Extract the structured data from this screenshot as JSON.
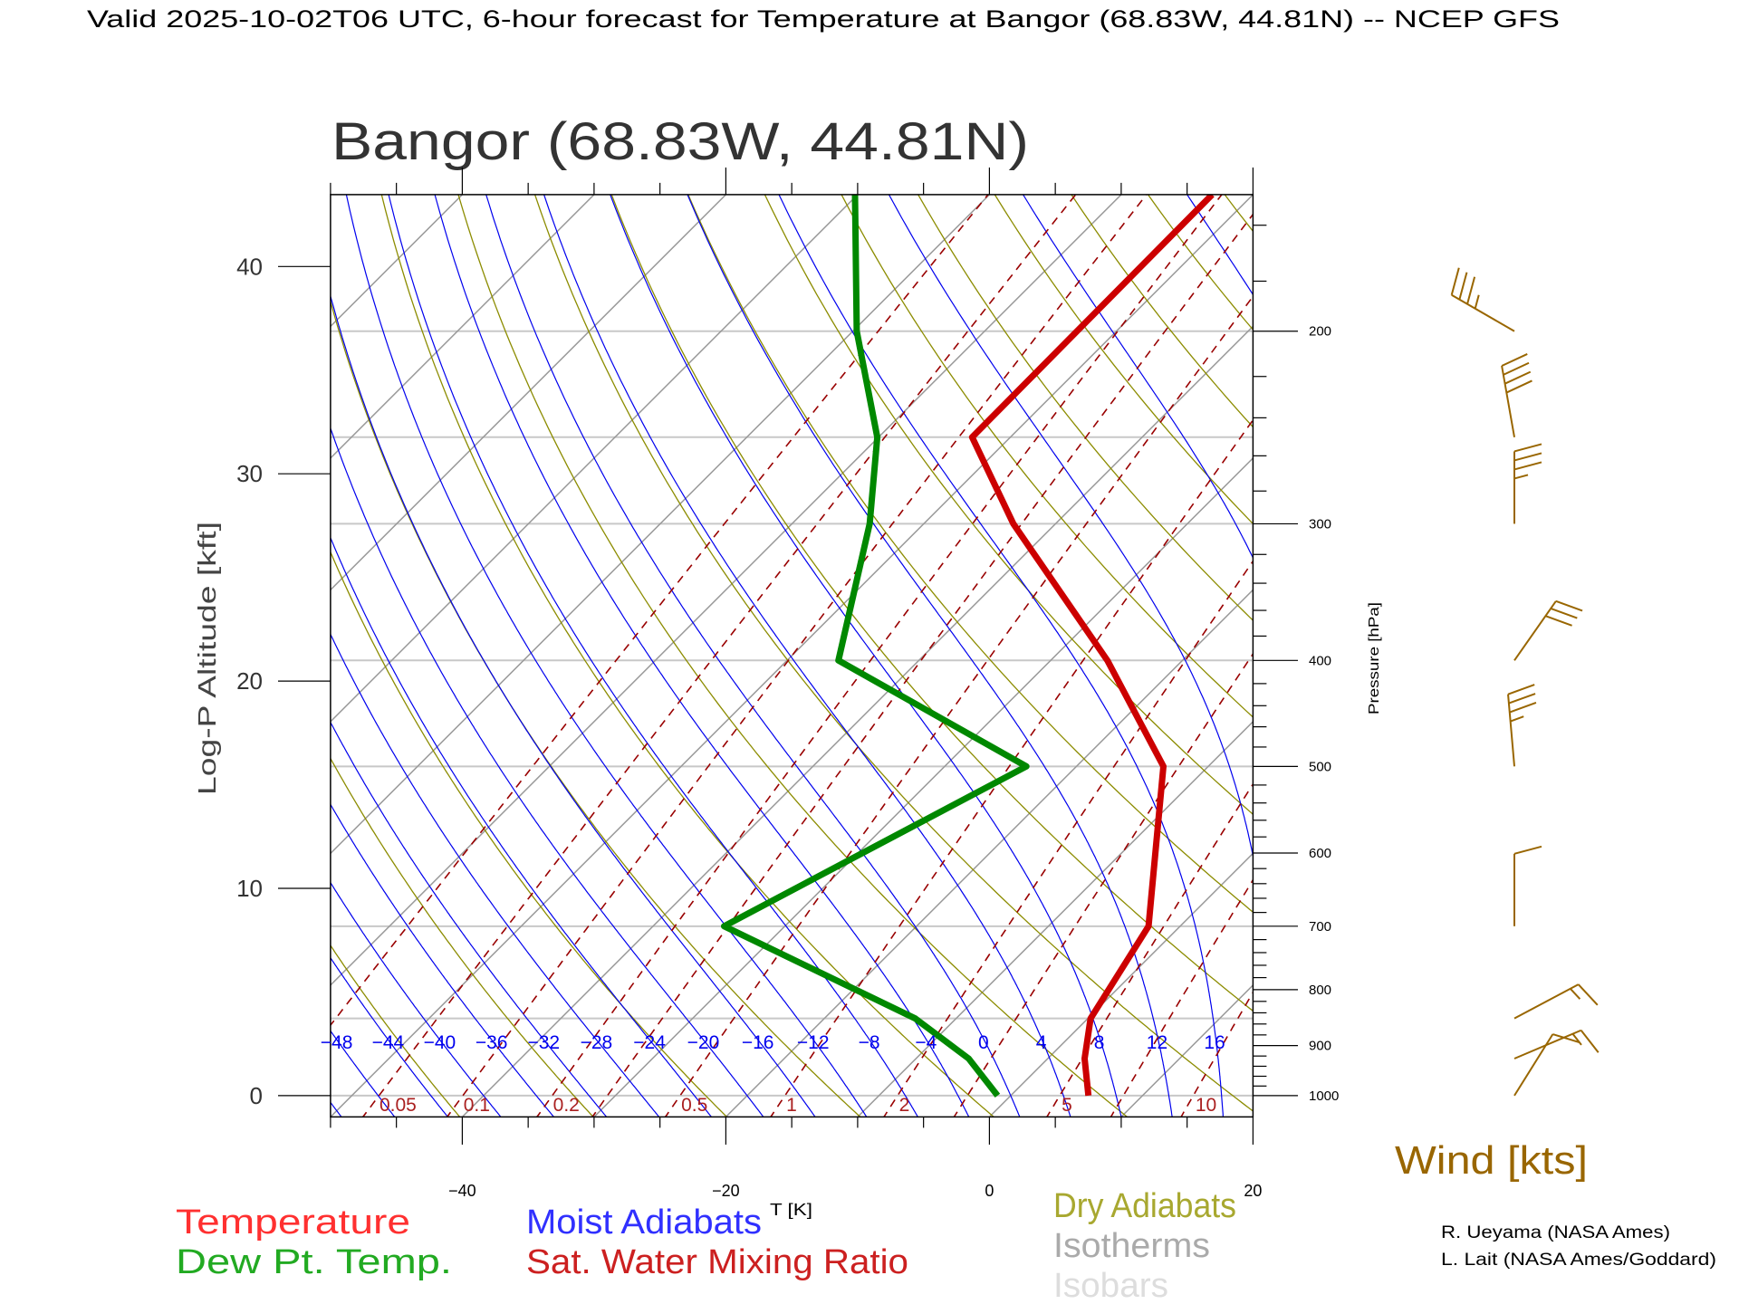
{
  "header": {
    "title": "Valid 2025-10-02T06 UTC, 6-hour forecast for Temperature at Bangor (68.83W, 44.81N) -- NCEP GFS"
  },
  "chart_data": {
    "type": "skewt",
    "title": "Bangor (68.83W, 44.81N)",
    "xlabel": "T [K]",
    "ylabel": "Log-P Altitude [kft]",
    "y2label": "Pressure [hPa]",
    "xlim": [
      -50,
      20
    ],
    "plim": [
      1045,
      150
    ],
    "x_ticks": [
      -40,
      -20,
      0,
      20
    ],
    "x_tick_labels": [
      "−40",
      "−20",
      "0",
      "20"
    ],
    "alt_ticks": [
      0,
      10,
      20,
      30,
      40
    ],
    "alt_tick_labels": [
      "0",
      "10",
      "20",
      "30",
      "40"
    ],
    "pressure_ticks": [
      1000,
      900,
      800,
      700,
      600,
      500,
      400,
      300,
      200
    ],
    "pressure_tick_labels": [
      "1000",
      "900",
      "800",
      "700",
      "600",
      "500",
      "400",
      "300",
      "200"
    ],
    "isobars": [
      1000,
      850,
      700,
      500,
      400,
      300,
      250,
      200
    ],
    "isotherm_step_C": 10,
    "dry_adiabat_step_K": 10,
    "moist_adiabat_labels": [
      -48,
      -44,
      -40,
      -36,
      -32,
      -28,
      -24,
      -20,
      -16,
      -12,
      -8,
      -4,
      0,
      4,
      8,
      12,
      16
    ],
    "mixing_ratio_lines": [
      0.02,
      0.05,
      0.1,
      0.2,
      0.3,
      0.5,
      1,
      2,
      3,
      5,
      7,
      10,
      15,
      20
    ],
    "mixing_ratio_labels": [
      "0.05",
      "0.1",
      "0.2",
      "0.5",
      "1",
      "2",
      "5",
      "10"
    ],
    "series": [
      {
        "name": "Temperature",
        "color": "#cc0000",
        "points": [
          {
            "p": 1000,
            "t": 5.9
          },
          {
            "p": 925,
            "t": 2.8
          },
          {
            "p": 850,
            "t": 0.2
          },
          {
            "p": 700,
            "t": -2.4
          },
          {
            "p": 500,
            "t": -13.4
          },
          {
            "p": 400,
            "t": -25.7
          },
          {
            "p": 300,
            "t": -43.2
          },
          {
            "p": 250,
            "t": -52.9
          },
          {
            "p": 150,
            "t": -53.1
          }
        ]
      },
      {
        "name": "Dew Pt. Temp.",
        "color": "#008800",
        "points": [
          {
            "p": 1000,
            "t": -1.0
          },
          {
            "p": 925,
            "t": -6.0
          },
          {
            "p": 850,
            "t": -13.1
          },
          {
            "p": 700,
            "t": -34.6
          },
          {
            "p": 500,
            "t": -23.8
          },
          {
            "p": 400,
            "t": -46.1
          },
          {
            "p": 300,
            "t": -54.1
          },
          {
            "p": 250,
            "t": -60.1
          },
          {
            "p": 200,
            "t": -69.7
          },
          {
            "p": 150,
            "t": -80.2
          }
        ]
      }
    ],
    "winds": [
      {
        "p": 1000,
        "dir": 32,
        "speed_kts": 10
      },
      {
        "p": 925,
        "dir": 67,
        "speed_kts": 15
      },
      {
        "p": 850,
        "dir": 62,
        "speed_kts": 15
      },
      {
        "p": 700,
        "dir": 0,
        "speed_kts": 10
      },
      {
        "p": 500,
        "dir": 355,
        "speed_kts": 35
      },
      {
        "p": 400,
        "dir": 35,
        "speed_kts": 30
      },
      {
        "p": 300,
        "dir": 0,
        "speed_kts": 35
      },
      {
        "p": 250,
        "dir": 350,
        "speed_kts": 40
      },
      {
        "p": 200,
        "dir": 300,
        "speed_kts": 35
      }
    ],
    "wind_label": "Wind [kts]",
    "legend": [
      {
        "label": "Temperature",
        "color": "#ff3030"
      },
      {
        "label": "Dew Pt. Temp.",
        "color": "#22aa22"
      },
      {
        "label": "Moist Adiabats",
        "color": "#3030ff"
      },
      {
        "label": "Sat. Water Mixing Ratio",
        "color": "#cc2020"
      },
      {
        "label": "Dry Adiabats",
        "color": "#a8a830"
      },
      {
        "label": "Isotherms",
        "color": "#aaaaaa"
      },
      {
        "label": "Isobars",
        "color": "#dddddd"
      }
    ],
    "colors": {
      "isotherm": "#999999",
      "isobar": "#c8c8c8",
      "dry": "#8c8c00",
      "moist": "#0000ee",
      "mixing": "#990000",
      "wind": "#996600"
    }
  },
  "credits": [
    "R. Ueyama (NASA Ames)",
    "L. Lait (NASA Ames/Goddard)"
  ]
}
